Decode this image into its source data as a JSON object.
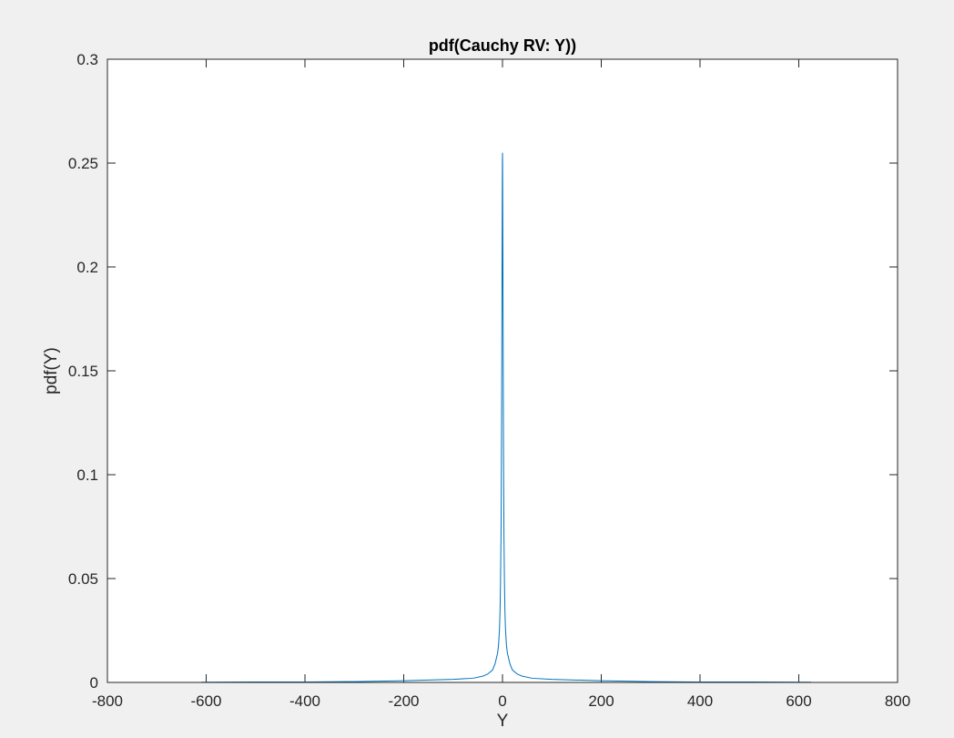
{
  "chart_data": {
    "type": "line",
    "title": "pdf(Cauchy RV: Y))",
    "xlabel": "Y",
    "ylabel": "pdf(Y)",
    "xlim": [
      -800,
      800
    ],
    "ylim": [
      0,
      0.3
    ],
    "xticks": [
      -800,
      -600,
      -400,
      -200,
      0,
      200,
      400,
      600,
      800
    ],
    "xtick_labels": [
      "-800",
      "-600",
      "-400",
      "-200",
      "0",
      "200",
      "400",
      "600",
      "800"
    ],
    "yticks": [
      0,
      0.05,
      0.1,
      0.15,
      0.2,
      0.25,
      0.3
    ],
    "ytick_labels": [
      "0",
      "0.05",
      "0.1",
      "0.15",
      "0.2",
      "0.25",
      "0.3"
    ],
    "grid": false,
    "legend": "none",
    "series": [
      {
        "color": "#0072bd",
        "x": [
          -610,
          -500,
          -400,
          -300,
          -200,
          -100,
          -60,
          -40,
          -30,
          -20,
          -15,
          -12,
          -10,
          -8,
          -6,
          -5,
          -4,
          -3,
          -2.5,
          -2,
          -1.5,
          -1,
          -0.7,
          -0.4,
          -0.2,
          0,
          0.2,
          0.4,
          0.7,
          1,
          1.5,
          2,
          2.5,
          3,
          4,
          5,
          6,
          8,
          10,
          12,
          15,
          20,
          30,
          40,
          60,
          100,
          200,
          300,
          400,
          500,
          625
        ],
        "y": [
          0.0001,
          0.0002,
          0.0002,
          0.0004,
          0.0008,
          0.0015,
          0.002,
          0.003,
          0.004,
          0.006,
          0.009,
          0.012,
          0.014,
          0.018,
          0.026,
          0.034,
          0.048,
          0.07,
          0.09,
          0.115,
          0.15,
          0.19,
          0.215,
          0.238,
          0.25,
          0.255,
          0.25,
          0.238,
          0.215,
          0.19,
          0.15,
          0.115,
          0.09,
          0.07,
          0.048,
          0.034,
          0.026,
          0.018,
          0.014,
          0.012,
          0.009,
          0.006,
          0.004,
          0.003,
          0.002,
          0.0015,
          0.0008,
          0.0004,
          0.0002,
          0.0002,
          0.0001
        ]
      }
    ]
  }
}
